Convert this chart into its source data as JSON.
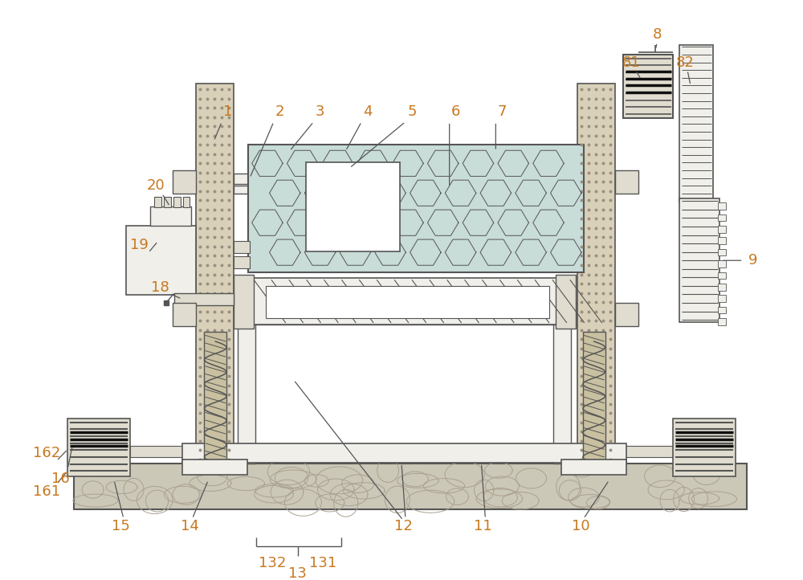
{
  "bg_color": "#ffffff",
  "line_color": "#555555",
  "label_color": "#c87820",
  "fill_col": "#d8d0b8",
  "fill_hex": "#c8dcd8",
  "fill_light": "#f0efea",
  "fill_stone": "#ccc8b8",
  "fill_motor": "#e0ddd0",
  "fill_gear_dark": "#303030"
}
